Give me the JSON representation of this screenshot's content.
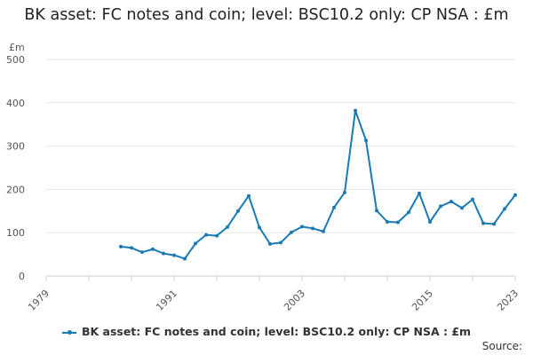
{
  "chart_data": {
    "type": "line",
    "title": "BK asset: FC notes and coin; level: BSC10.2 only: CP NSA : £m",
    "ylabel": "£m",
    "xlabel": "",
    "ylim": [
      0,
      500
    ],
    "xlim": [
      1979,
      2023
    ],
    "y_ticks": [
      "0",
      "100",
      "200",
      "300",
      "400",
      "500"
    ],
    "x_ticks": [
      "1979",
      "1991",
      "2003",
      "2015",
      "2023"
    ],
    "grid": "horizontal",
    "legend_position": "bottom",
    "series": [
      {
        "name": "BK asset: FC notes and coin; level: BSC10.2 only: CP NSA : £m",
        "color": "#1a7ab5",
        "x": [
          1986,
          1987,
          1988,
          1989,
          1990,
          1991,
          1992,
          1993,
          1994,
          1995,
          1996,
          1997,
          1998,
          1999,
          2000,
          2001,
          2002,
          2003,
          2004,
          2005,
          2006,
          2007,
          2008,
          2009,
          2010,
          2011,
          2012,
          2013,
          2014,
          2015,
          2016,
          2017,
          2018,
          2019,
          2020,
          2021,
          2022,
          2023
        ],
        "values": [
          68,
          65,
          55,
          62,
          52,
          48,
          40,
          75,
          95,
          93,
          113,
          150,
          185,
          112,
          74,
          77,
          101,
          114,
          110,
          103,
          158,
          193,
          382,
          313,
          151,
          125,
          124,
          147,
          191,
          125,
          161,
          172,
          157,
          177,
          122,
          120,
          155,
          187
        ]
      }
    ]
  },
  "source_label": "Source:"
}
